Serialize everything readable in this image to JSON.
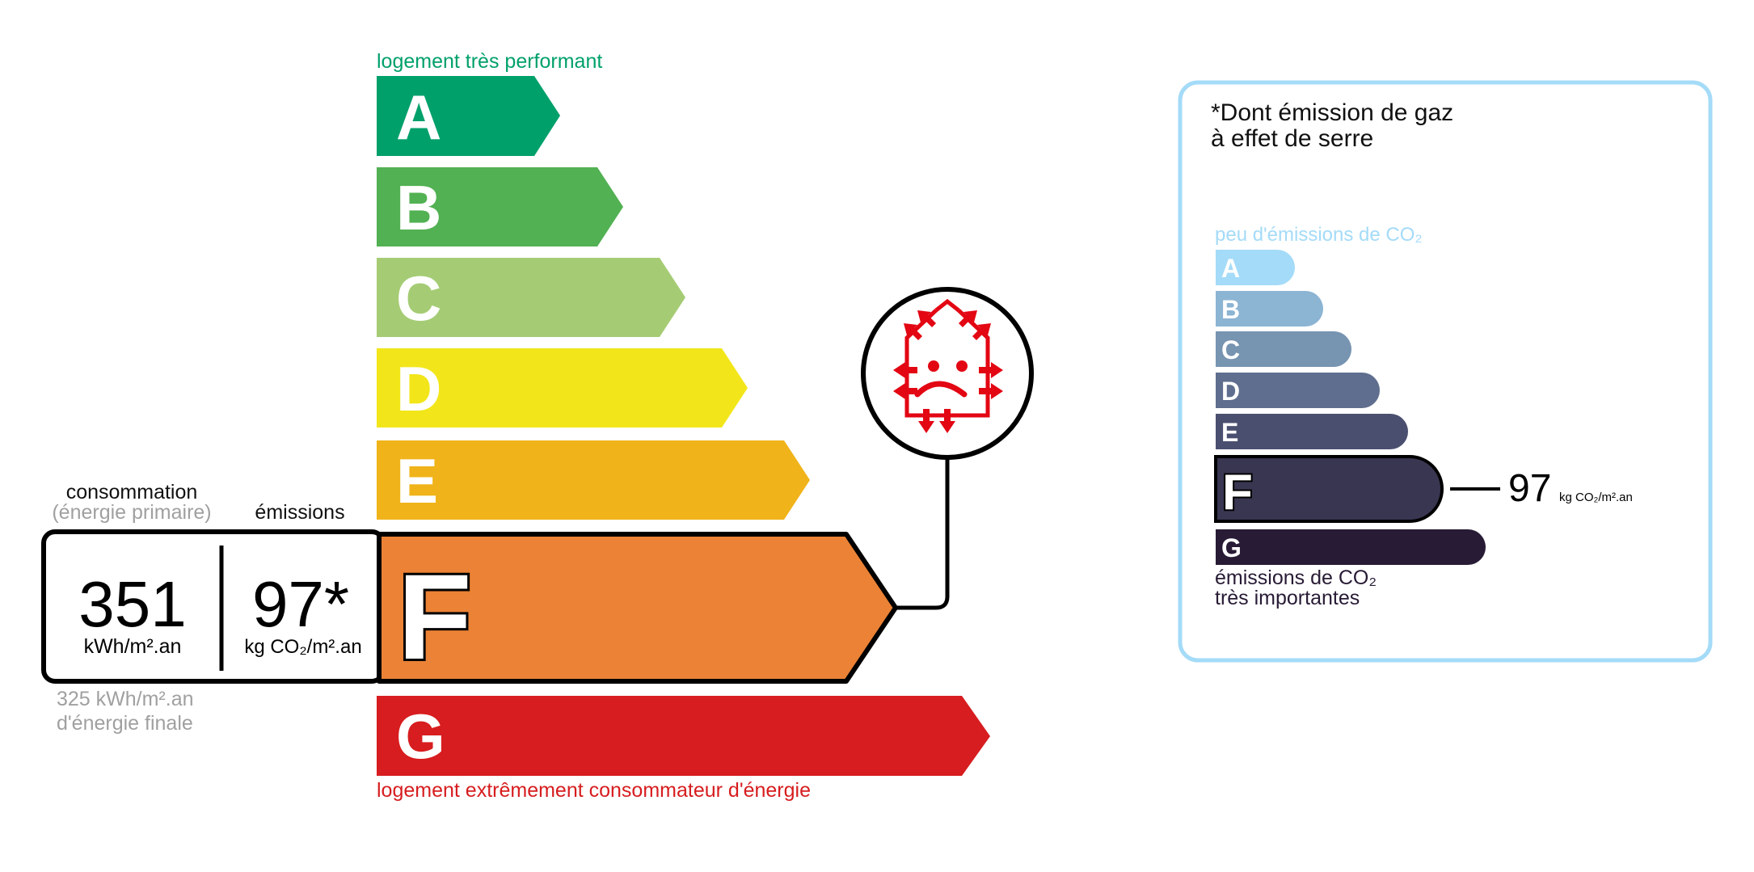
{
  "energy": {
    "top_label": "logement très performant",
    "bottom_label": "logement extrêmement consommateur d'énergie",
    "classes": [
      {
        "letter": "A",
        "color": "#00a06b"
      },
      {
        "letter": "B",
        "color": "#52b153"
      },
      {
        "letter": "C",
        "color": "#a5cc74"
      },
      {
        "letter": "D",
        "color": "#f2e61a"
      },
      {
        "letter": "E",
        "color": "#f0b41a"
      },
      {
        "letter": "F",
        "color": "#eb8235"
      },
      {
        "letter": "G",
        "color": "#d71d1f"
      }
    ],
    "current_class": "F",
    "consumption_label": "consommation",
    "consumption_sub": "(énergie primaire)",
    "emissions_label": "émissions",
    "consumption_value": "351",
    "consumption_unit": "kWh/m².an",
    "emissions_value": "97*",
    "emissions_unit": "kg CO₂/m².an",
    "final_energy_value": "325 kWh/m².an",
    "final_energy_label": "d'énergie finale",
    "icon": "house-energy-loss-sad-icon"
  },
  "ges": {
    "title_line1": "*Dont émission de gaz",
    "title_line2": "à effet de serre",
    "top_label": "peu d'émissions de CO₂",
    "bottom_label_line1": "émissions de CO₂",
    "bottom_label_line2": "très importantes",
    "classes": [
      {
        "letter": "A",
        "color": "#a4dbf8"
      },
      {
        "letter": "B",
        "color": "#8cb4d3"
      },
      {
        "letter": "C",
        "color": "#7794b1"
      },
      {
        "letter": "D",
        "color": "#5f6e8e"
      },
      {
        "letter": "E",
        "color": "#4b4f6f"
      },
      {
        "letter": "F",
        "color": "#383651"
      },
      {
        "letter": "G",
        "color": "#281b35"
      }
    ],
    "current_class": "F",
    "value": "97",
    "unit": "kg CO₂/m².an",
    "border_color": "#a4dbf8"
  }
}
